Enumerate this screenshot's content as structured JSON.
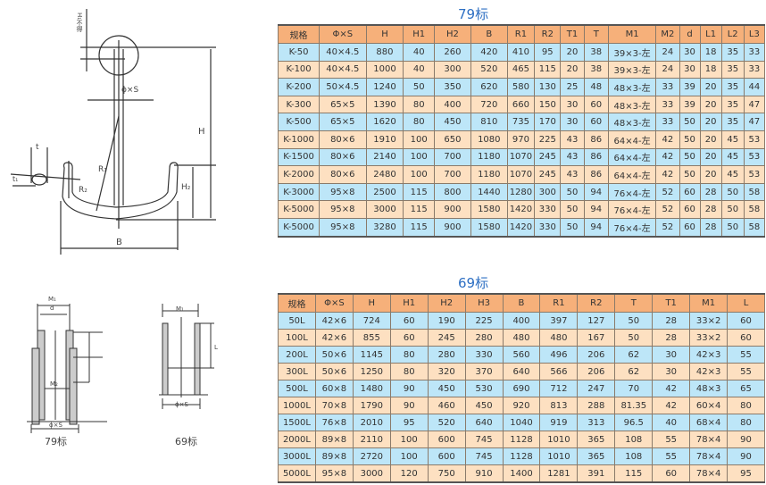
{
  "table79": {
    "title": "79标",
    "headers": [
      "规格",
      "Φ×S",
      "H",
      "H1",
      "H2",
      "B",
      "R1",
      "R2",
      "T1",
      "T",
      "M1",
      "M2",
      "d",
      "L1",
      "L2",
      "L3"
    ],
    "rows": [
      [
        "K-50",
        "40×4.5",
        "880",
        "40",
        "260",
        "420",
        "410",
        "95",
        "20",
        "38",
        "39×3-左",
        "24",
        "30",
        "18",
        "35",
        "33"
      ],
      [
        "K-100",
        "40×4.5",
        "1000",
        "40",
        "300",
        "520",
        "465",
        "115",
        "20",
        "38",
        "39×3-左",
        "24",
        "30",
        "18",
        "35",
        "33"
      ],
      [
        "K-200",
        "50×4.5",
        "1240",
        "50",
        "350",
        "620",
        "580",
        "130",
        "25",
        "48",
        "48×3-左",
        "33",
        "39",
        "20",
        "35",
        "44"
      ],
      [
        "K-300",
        "65×5",
        "1390",
        "80",
        "400",
        "720",
        "660",
        "150",
        "30",
        "60",
        "48×3-左",
        "33",
        "39",
        "20",
        "35",
        "47"
      ],
      [
        "K-500",
        "65×5",
        "1620",
        "80",
        "450",
        "810",
        "735",
        "170",
        "30",
        "60",
        "48×3-左",
        "33",
        "50",
        "20",
        "35",
        "47"
      ],
      [
        "K-1000",
        "80×6",
        "1910",
        "100",
        "650",
        "1080",
        "970",
        "225",
        "43",
        "86",
        "64×4-左",
        "42",
        "50",
        "20",
        "45",
        "53"
      ],
      [
        "K-1500",
        "80×6",
        "2140",
        "100",
        "700",
        "1180",
        "1070",
        "245",
        "43",
        "86",
        "64×4-左",
        "42",
        "50",
        "20",
        "45",
        "53"
      ],
      [
        "K-2000",
        "80×6",
        "2480",
        "100",
        "700",
        "1180",
        "1070",
        "245",
        "43",
        "86",
        "64×4-左",
        "42",
        "50",
        "20",
        "45",
        "53"
      ],
      [
        "K-3000",
        "95×8",
        "2500",
        "115",
        "800",
        "1440",
        "1280",
        "300",
        "50",
        "94",
        "76×4-左",
        "52",
        "60",
        "28",
        "50",
        "58"
      ],
      [
        "K-5000",
        "95×8",
        "3000",
        "115",
        "900",
        "1580",
        "1420",
        "330",
        "50",
        "94",
        "76×4-左",
        "52",
        "60",
        "28",
        "50",
        "58"
      ],
      [
        "K-5000",
        "95×8",
        "3280",
        "115",
        "900",
        "1580",
        "1420",
        "330",
        "50",
        "94",
        "76×4-左",
        "52",
        "60",
        "28",
        "50",
        "58"
      ]
    ]
  },
  "table69": {
    "title": "69标",
    "headers": [
      "规格",
      "Φ×S",
      "H",
      "H1",
      "H2",
      "H3",
      "B",
      "R1",
      "R2",
      "T",
      "T1",
      "M1",
      "L"
    ],
    "rows": [
      [
        "50L",
        "42×6",
        "724",
        "60",
        "190",
        "225",
        "400",
        "397",
        "127",
        "50",
        "28",
        "33×2",
        "60"
      ],
      [
        "100L",
        "42×6",
        "855",
        "60",
        "245",
        "280",
        "480",
        "480",
        "167",
        "50",
        "28",
        "33×2",
        "60"
      ],
      [
        "200L",
        "50×6",
        "1145",
        "80",
        "280",
        "330",
        "560",
        "496",
        "206",
        "62",
        "30",
        "42×3",
        "55"
      ],
      [
        "300L",
        "50×6",
        "1250",
        "80",
        "320",
        "370",
        "640",
        "566",
        "206",
        "62",
        "30",
        "42×3",
        "55"
      ],
      [
        "500L",
        "60×8",
        "1480",
        "90",
        "450",
        "530",
        "690",
        "712",
        "247",
        "70",
        "42",
        "48×3",
        "65"
      ],
      [
        "1000L",
        "70×8",
        "1790",
        "90",
        "460",
        "450",
        "920",
        "813",
        "288",
        "81.35",
        "42",
        "60×4",
        "80"
      ],
      [
        "1500L",
        "76×8",
        "2010",
        "95",
        "520",
        "640",
        "1040",
        "919",
        "313",
        "96.5",
        "40",
        "68×4",
        "80"
      ],
      [
        "2000L",
        "89×8",
        "2110",
        "100",
        "600",
        "745",
        "1128",
        "1010",
        "365",
        "108",
        "55",
        "78×4",
        "90"
      ],
      [
        "3000L",
        "89×8",
        "2720",
        "100",
        "600",
        "745",
        "1128",
        "1010",
        "365",
        "108",
        "55",
        "78×4",
        "90"
      ],
      [
        "5000L",
        "95×8",
        "3000",
        "120",
        "750",
        "910",
        "1400",
        "1281",
        "391",
        "115",
        "60",
        "78×4",
        "95"
      ]
    ]
  },
  "drawings": {
    "anchor_labels": {
      "phi_s": "ϕ×S",
      "H": "H",
      "H2": "H₂",
      "B": "B",
      "R1": "R₁",
      "R2": "R₂",
      "t": "t",
      "t1": "t₁",
      "h1": "H₁不得"
    },
    "caption_79": "79标",
    "caption_69": "69标",
    "fitting_labels": {
      "m1": "M₁",
      "d": "d",
      "m2": "M₂",
      "phi_s": "ϕ×S",
      "L": "L"
    }
  },
  "colors": {
    "header": "#f6b07a",
    "row_blue": "#bde6f8",
    "row_peach": "#fde0c1",
    "title": "#2d6fc3"
  }
}
